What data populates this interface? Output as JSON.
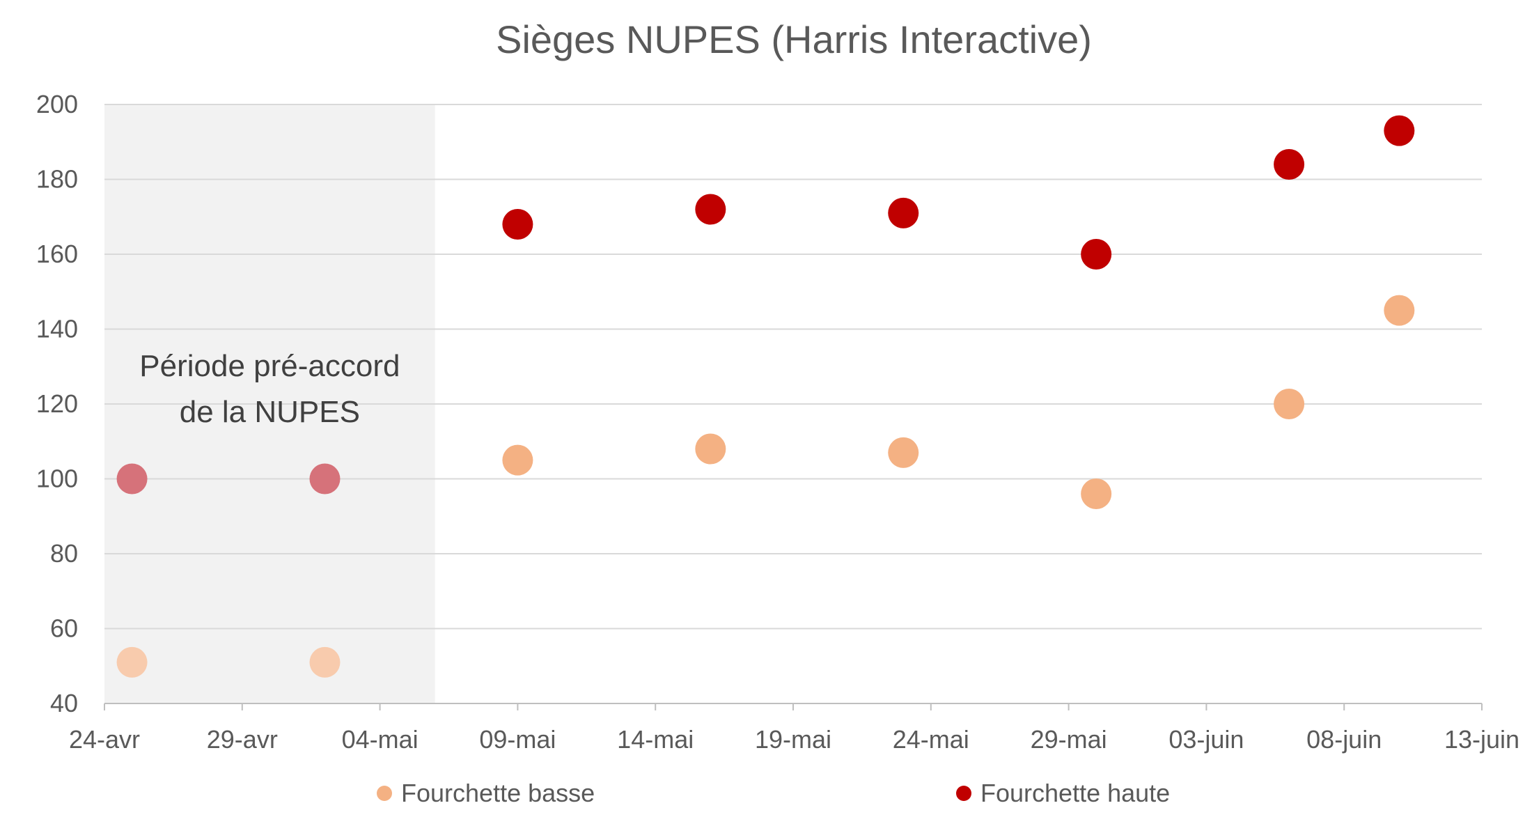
{
  "chart_data": {
    "type": "scatter",
    "title": "Sièges NUPES (Harris Interactive)",
    "xlabel": "",
    "ylabel": "",
    "x_ticks": [
      "24-avr",
      "29-avr",
      "04-mai",
      "09-mai",
      "14-mai",
      "19-mai",
      "24-mai",
      "29-mai",
      "03-juin",
      "08-juin",
      "13-juin"
    ],
    "x_range": [
      "2022-04-24",
      "2022-06-13"
    ],
    "ylim": [
      40,
      200
    ],
    "y_ticks": [
      "200",
      "180",
      "160",
      "140",
      "120",
      "100",
      "80",
      "60",
      "40"
    ],
    "grid": "horizontal",
    "legend_position": "bottom",
    "shaded_region": {
      "x_range": [
        "2022-04-24",
        "2022-05-06"
      ],
      "label_lines": [
        "Période pré-accord",
        "de la NUPES"
      ],
      "color": "#f2f2f2"
    },
    "series": [
      {
        "name": "Fourchette basse",
        "color": "#f4b183",
        "faded_color": "#f8cbad",
        "points": [
          {
            "x": "2022-04-25",
            "y": 51,
            "faded": true
          },
          {
            "x": "2022-05-02",
            "y": 51,
            "faded": true
          },
          {
            "x": "2022-05-09",
            "y": 105
          },
          {
            "x": "2022-05-16",
            "y": 108
          },
          {
            "x": "2022-05-23",
            "y": 107
          },
          {
            "x": "2022-05-30",
            "y": 96
          },
          {
            "x": "2022-06-06",
            "y": 120
          },
          {
            "x": "2022-06-10",
            "y": 145
          }
        ]
      },
      {
        "name": "Fourchette haute",
        "color": "#c00000",
        "faded_color": "#d6727a",
        "points": [
          {
            "x": "2022-04-25",
            "y": 100,
            "faded": true
          },
          {
            "x": "2022-05-02",
            "y": 100,
            "faded": true
          },
          {
            "x": "2022-05-09",
            "y": 168
          },
          {
            "x": "2022-05-16",
            "y": 172
          },
          {
            "x": "2022-05-23",
            "y": 171
          },
          {
            "x": "2022-05-30",
            "y": 160
          },
          {
            "x": "2022-06-06",
            "y": 184
          },
          {
            "x": "2022-06-10",
            "y": 193
          }
        ]
      }
    ]
  }
}
